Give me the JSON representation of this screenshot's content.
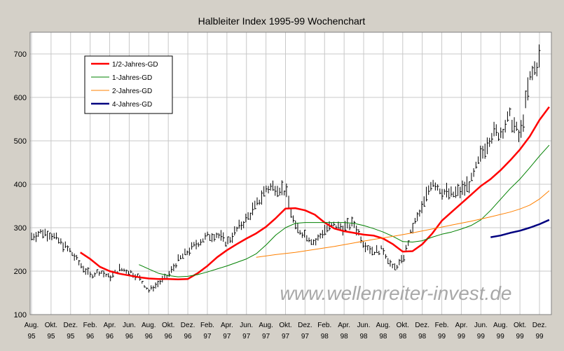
{
  "chart_data": {
    "type": "line",
    "title": "Halbleiter Index 1995-99 Wochenchart",
    "watermark": "www.wellenreiter-invest.de",
    "ylim": [
      100,
      750
    ],
    "yticks": [
      100,
      200,
      300,
      400,
      500,
      600,
      700
    ],
    "x_range_months": [
      "1995-08",
      "1999-12"
    ],
    "x_ticks": [
      {
        "month": "Aug.",
        "year": "95"
      },
      {
        "month": "Okt.",
        "year": "95"
      },
      {
        "month": "Dez.",
        "year": "95"
      },
      {
        "month": "Feb.",
        "year": "96"
      },
      {
        "month": "Apr.",
        "year": "96"
      },
      {
        "month": "Jun.",
        "year": "96"
      },
      {
        "month": "Aug.",
        "year": "96"
      },
      {
        "month": "Okt.",
        "year": "96"
      },
      {
        "month": "Dez.",
        "year": "96"
      },
      {
        "month": "Feb.",
        "year": "97"
      },
      {
        "month": "Apr.",
        "year": "97"
      },
      {
        "month": "Jun.",
        "year": "97"
      },
      {
        "month": "Aug.",
        "year": "97"
      },
      {
        "month": "Okt.",
        "year": "97"
      },
      {
        "month": "Dez.",
        "year": "97"
      },
      {
        "month": "Feb.",
        "year": "98"
      },
      {
        "month": "Apr.",
        "year": "98"
      },
      {
        "month": "Jun.",
        "year": "98"
      },
      {
        "month": "Aug.",
        "year": "98"
      },
      {
        "month": "Okt.",
        "year": "98"
      },
      {
        "month": "Dez.",
        "year": "98"
      },
      {
        "month": "Feb.",
        "year": "99"
      },
      {
        "month": "Apr.",
        "year": "99"
      },
      {
        "month": "Jun.",
        "year": "99"
      },
      {
        "month": "Aug.",
        "year": "99"
      },
      {
        "month": "Okt.",
        "year": "99"
      },
      {
        "month": "Dez.",
        "year": "99"
      }
    ],
    "grid": true,
    "legend_position": "top-left",
    "price_series": {
      "name": "Halbleiter Index",
      "color": "#000000",
      "style": "weekly high-low bars",
      "anchors": [
        [
          "1995-08",
          280
        ],
        [
          "1995-09",
          290
        ],
        [
          "1995-10",
          285
        ],
        [
          "1995-11",
          265
        ],
        [
          "1995-12",
          245
        ],
        [
          "1996-01",
          215
        ],
        [
          "1996-02",
          190
        ],
        [
          "1996-03",
          200
        ],
        [
          "1996-04",
          185
        ],
        [
          "1996-05",
          205
        ],
        [
          "1996-06",
          200
        ],
        [
          "1996-07",
          185
        ],
        [
          "1996-08",
          155
        ],
        [
          "1996-09",
          172
        ],
        [
          "1996-10",
          190
        ],
        [
          "1996-11",
          225
        ],
        [
          "1996-12",
          245
        ],
        [
          "1997-01",
          265
        ],
        [
          "1997-02",
          280
        ],
        [
          "1997-03",
          285
        ],
        [
          "1997-04",
          265
        ],
        [
          "1997-05",
          295
        ],
        [
          "1997-06",
          320
        ],
        [
          "1997-07",
          350
        ],
        [
          "1997-08",
          390
        ],
        [
          "1997-09",
          395
        ],
        [
          "1997-10",
          385
        ],
        [
          "1997-11",
          300
        ],
        [
          "1997-12",
          285
        ],
        [
          "1998-01",
          265
        ],
        [
          "1998-02",
          295
        ],
        [
          "1998-03",
          305
        ],
        [
          "1998-04",
          300
        ],
        [
          "1998-05",
          310
        ],
        [
          "1998-06",
          265
        ],
        [
          "1998-07",
          245
        ],
        [
          "1998-08",
          250
        ],
        [
          "1998-09",
          205
        ],
        [
          "1998-10",
          225
        ],
        [
          "1998-11",
          300
        ],
        [
          "1998-12",
          345
        ],
        [
          "1999-01",
          410
        ],
        [
          "1999-02",
          385
        ],
        [
          "1999-03",
          375
        ],
        [
          "1999-04",
          385
        ],
        [
          "1999-05",
          405
        ],
        [
          "1999-06",
          465
        ],
        [
          "1999-07",
          515
        ],
        [
          "1999-08",
          520
        ],
        [
          "1999-09",
          555
        ],
        [
          "1999-10",
          505
        ],
        [
          "1999-11",
          640
        ],
        [
          "1999-12",
          690
        ]
      ]
    },
    "series": [
      {
        "name": "1/2-Jahres-GD",
        "color": "#ff0000",
        "width": 2.5,
        "points": [
          [
            "1996-01",
            243
          ],
          [
            "1996-02",
            228
          ],
          [
            "1996-03",
            210
          ],
          [
            "1996-04",
            200
          ],
          [
            "1996-05",
            194
          ],
          [
            "1996-06",
            190
          ],
          [
            "1996-07",
            186
          ],
          [
            "1996-08",
            183
          ],
          [
            "1996-09",
            182
          ],
          [
            "1996-10",
            182
          ],
          [
            "1996-11",
            181
          ],
          [
            "1996-12",
            182
          ],
          [
            "1997-01",
            195
          ],
          [
            "1997-02",
            212
          ],
          [
            "1997-03",
            232
          ],
          [
            "1997-04",
            248
          ],
          [
            "1997-05",
            262
          ],
          [
            "1997-06",
            275
          ],
          [
            "1997-07",
            287
          ],
          [
            "1997-08",
            302
          ],
          [
            "1997-09",
            322
          ],
          [
            "1997-10",
            344
          ],
          [
            "1997-11",
            345
          ],
          [
            "1997-12",
            340
          ],
          [
            "1998-01",
            330
          ],
          [
            "1998-02",
            312
          ],
          [
            "1998-03",
            298
          ],
          [
            "1998-04",
            292
          ],
          [
            "1998-05",
            288
          ],
          [
            "1998-06",
            284
          ],
          [
            "1998-07",
            282
          ],
          [
            "1998-08",
            275
          ],
          [
            "1998-09",
            262
          ],
          [
            "1998-10",
            245
          ],
          [
            "1998-11",
            246
          ],
          [
            "1998-12",
            262
          ],
          [
            "1999-01",
            286
          ],
          [
            "1999-02",
            316
          ],
          [
            "1999-03",
            336
          ],
          [
            "1999-04",
            356
          ],
          [
            "1999-05",
            376
          ],
          [
            "1999-06",
            396
          ],
          [
            "1999-07",
            412
          ],
          [
            "1999-08",
            432
          ],
          [
            "1999-09",
            455
          ],
          [
            "1999-10",
            480
          ],
          [
            "1999-11",
            510
          ],
          [
            "1999-12",
            548
          ],
          [
            "2000-01",
            578
          ]
        ]
      },
      {
        "name": "1-Jahres-GD",
        "color": "#008000",
        "width": 1,
        "points": [
          [
            "1996-07",
            215
          ],
          [
            "1996-08",
            205
          ],
          [
            "1996-09",
            195
          ],
          [
            "1996-10",
            190
          ],
          [
            "1996-11",
            187
          ],
          [
            "1996-12",
            188
          ],
          [
            "1997-01",
            192
          ],
          [
            "1997-02",
            198
          ],
          [
            "1997-03",
            205
          ],
          [
            "1997-04",
            212
          ],
          [
            "1997-05",
            220
          ],
          [
            "1997-06",
            228
          ],
          [
            "1997-07",
            240
          ],
          [
            "1997-08",
            260
          ],
          [
            "1997-09",
            283
          ],
          [
            "1997-10",
            300
          ],
          [
            "1997-11",
            310
          ],
          [
            "1997-12",
            312
          ],
          [
            "1998-01",
            312
          ],
          [
            "1998-02",
            312
          ],
          [
            "1998-03",
            312
          ],
          [
            "1998-04",
            312
          ],
          [
            "1998-05",
            310
          ],
          [
            "1998-06",
            305
          ],
          [
            "1998-07",
            298
          ],
          [
            "1998-08",
            290
          ],
          [
            "1998-09",
            280
          ],
          [
            "1998-10",
            268
          ],
          [
            "1998-11",
            267
          ],
          [
            "1998-12",
            270
          ],
          [
            "1999-01",
            278
          ],
          [
            "1999-02",
            285
          ],
          [
            "1999-03",
            290
          ],
          [
            "1999-04",
            297
          ],
          [
            "1999-05",
            305
          ],
          [
            "1999-06",
            318
          ],
          [
            "1999-07",
            340
          ],
          [
            "1999-08",
            365
          ],
          [
            "1999-09",
            390
          ],
          [
            "1999-10",
            412
          ],
          [
            "1999-11",
            438
          ],
          [
            "1999-12",
            465
          ],
          [
            "2000-01",
            490
          ]
        ]
      },
      {
        "name": "2-Jahres-GD",
        "color": "#ff8000",
        "width": 1,
        "points": [
          [
            "1997-07",
            232
          ],
          [
            "1997-09",
            238
          ],
          [
            "1997-11",
            243
          ],
          [
            "1998-01",
            250
          ],
          [
            "1998-03",
            257
          ],
          [
            "1998-05",
            265
          ],
          [
            "1998-07",
            273
          ],
          [
            "1998-09",
            280
          ],
          [
            "1998-11",
            288
          ],
          [
            "1999-01",
            297
          ],
          [
            "1999-03",
            306
          ],
          [
            "1999-05",
            315
          ],
          [
            "1999-07",
            325
          ],
          [
            "1999-09",
            336
          ],
          [
            "1999-10",
            343
          ],
          [
            "1999-11",
            352
          ],
          [
            "1999-12",
            366
          ],
          [
            "2000-01",
            385
          ]
        ]
      },
      {
        "name": "4-Jahres-GD",
        "color": "#000080",
        "width": 2.5,
        "points": [
          [
            "1999-07",
            278
          ],
          [
            "1999-08",
            282
          ],
          [
            "1999-09",
            288
          ],
          [
            "1999-10",
            293
          ],
          [
            "1999-11",
            300
          ],
          [
            "1999-12",
            308
          ],
          [
            "2000-01",
            318
          ]
        ]
      }
    ]
  }
}
